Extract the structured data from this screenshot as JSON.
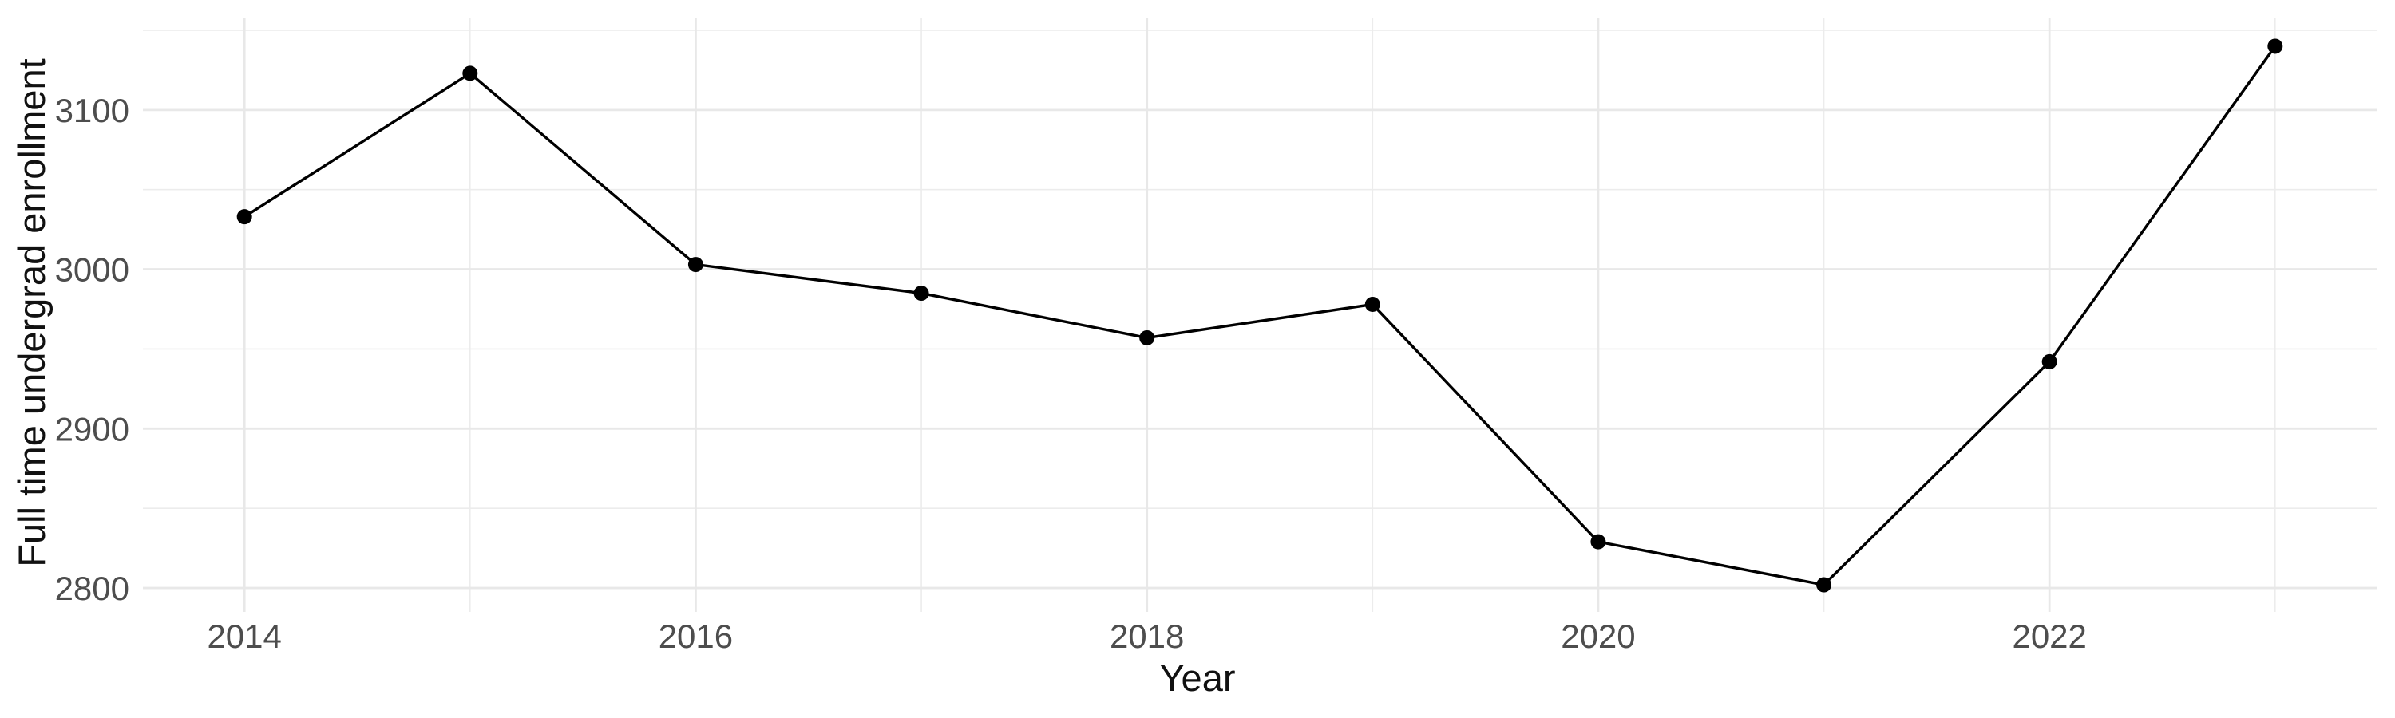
{
  "figure": {
    "background_color": "#FFFFFF"
  },
  "chart_data": {
    "type": "line",
    "title": "",
    "xlabel": "Year",
    "ylabel": "Full time undergrad enrollment",
    "x": [
      2014,
      2015,
      2016,
      2017,
      2018,
      2019,
      2020,
      2021,
      2022,
      2023
    ],
    "series": [
      {
        "name": "Full time undergrad enrollment",
        "values": [
          3033,
          3123,
          3003,
          2985,
          2957,
          2978,
          2829,
          2802,
          2942,
          3140
        ]
      }
    ],
    "x_ticks_major": {
      "values": [
        2014,
        2016,
        2018,
        2020,
        2022
      ],
      "labels": [
        "2014",
        "2016",
        "2018",
        "2020",
        "2022"
      ]
    },
    "x_ticks_minor": [
      2015,
      2017,
      2019,
      2021,
      2023
    ],
    "y_ticks_major": {
      "values": [
        2800,
        2900,
        3000,
        3100
      ],
      "labels": [
        "2800",
        "2900",
        "3000",
        "3100"
      ]
    },
    "y_ticks_minor": [
      2850,
      2950,
      3050,
      3150
    ],
    "xlim": [
      2013.55,
      2023.45
    ],
    "ylim": [
      2785,
      3158
    ],
    "grid": true,
    "legend": false,
    "style": {
      "line_color": "#000000",
      "point_color": "#000000",
      "grid_major_color": "#E8E8E8",
      "grid_minor_color": "#ECECEC",
      "tick_label_color": "#4D4D4D",
      "axis_title_color": "#111111",
      "line_width": 3.4,
      "point_radius": 9.5,
      "grid_major_width": 2.8,
      "grid_minor_width": 1.6
    }
  }
}
